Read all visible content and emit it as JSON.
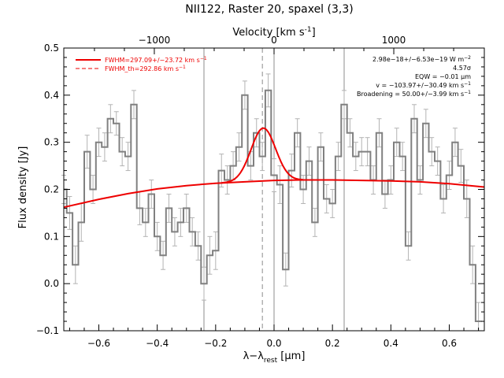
{
  "chart_data": {
    "type": "line",
    "title": "NII122, Raster 20, spaxel (3,3)",
    "xlabel_main": "λ",
    "xlabel_mid": "−λ",
    "xlabel_sub": "rest",
    "xlabel_unit_open": " [",
    "xlabel_unit_mu": "μ",
    "xlabel_unit_close": "m]",
    "ylabel": "Flux density [Jy]",
    "top_xlabel_main": "Velocity [km s",
    "top_xlabel_exp": "-1",
    "top_xlabel_close": "]",
    "xlim": [
      -0.72,
      0.72
    ],
    "ylim": [
      -0.1,
      0.5
    ],
    "x_ticks": [
      -0.6,
      -0.4,
      -0.2,
      0.0,
      0.2,
      0.4,
      0.6
    ],
    "x_tick_labels": [
      "−0.6",
      "−0.4",
      "−0.2",
      "0.0",
      "0.2",
      "0.4",
      "0.6"
    ],
    "y_ticks": [
      -0.1,
      0.0,
      0.1,
      0.2,
      0.3,
      0.4,
      0.5
    ],
    "y_tick_labels": [
      "−0.1",
      "0.0",
      "0.1",
      "0.2",
      "0.3",
      "0.4",
      "0.5"
    ],
    "top_ticks_velocity": [
      -1000,
      0,
      1000
    ],
    "top_tick_labels": [
      "−1000",
      "0",
      "1000"
    ],
    "vertical_lines_x": [
      -0.24,
      0.0,
      0.24
    ],
    "dashed_line_x": -0.04,
    "spectrum": {
      "name": "data",
      "color": "#808080",
      "x": [
        -0.72,
        -0.7,
        -0.68,
        -0.66,
        -0.64,
        -0.62,
        -0.6,
        -0.58,
        -0.56,
        -0.54,
        -0.52,
        -0.5,
        -0.48,
        -0.46,
        -0.44,
        -0.42,
        -0.4,
        -0.38,
        -0.36,
        -0.34,
        -0.32,
        -0.3,
        -0.28,
        -0.26,
        -0.24,
        -0.22,
        -0.2,
        -0.18,
        -0.16,
        -0.14,
        -0.12,
        -0.1,
        -0.08,
        -0.06,
        -0.04,
        -0.02,
        0.0,
        0.02,
        0.04,
        0.06,
        0.08,
        0.1,
        0.12,
        0.14,
        0.16,
        0.18,
        0.2,
        0.22,
        0.24,
        0.26,
        0.28,
        0.3,
        0.32,
        0.34,
        0.36,
        0.38,
        0.4,
        0.42,
        0.44,
        0.46,
        0.48,
        0.5,
        0.52,
        0.54,
        0.56,
        0.58,
        0.6,
        0.62,
        0.64,
        0.66,
        0.68,
        0.7
      ],
      "y": [
        0.2,
        0.15,
        0.04,
        0.13,
        0.28,
        0.2,
        0.3,
        0.29,
        0.35,
        0.34,
        0.28,
        0.27,
        0.38,
        0.16,
        0.13,
        0.19,
        0.1,
        0.06,
        0.16,
        0.11,
        0.13,
        0.16,
        0.11,
        0.08,
        0.0,
        0.06,
        0.07,
        0.24,
        0.22,
        0.25,
        0.29,
        0.4,
        0.25,
        0.32,
        0.27,
        0.41,
        0.23,
        0.21,
        0.03,
        0.24,
        0.32,
        0.2,
        0.26,
        0.13,
        0.29,
        0.18,
        0.17,
        0.27,
        0.38,
        0.32,
        0.27,
        0.28,
        0.28,
        0.22,
        0.32,
        0.19,
        0.22,
        0.3,
        0.27,
        0.08,
        0.35,
        0.22,
        0.34,
        0.28,
        0.26,
        0.18,
        0.23,
        0.3,
        0.25,
        0.18,
        0.04,
        -0.08
      ],
      "err": [
        0.03,
        0.035,
        0.04,
        0.04,
        0.035,
        0.03,
        0.03,
        0.03,
        0.03,
        0.025,
        0.03,
        0.03,
        0.03,
        0.035,
        0.03,
        0.03,
        0.03,
        0.03,
        0.03,
        0.03,
        0.03,
        0.03,
        0.03,
        0.03,
        0.035,
        0.04,
        0.04,
        0.035,
        0.03,
        0.03,
        0.03,
        0.03,
        0.03,
        0.03,
        0.03,
        0.035,
        0.035,
        0.04,
        0.035,
        0.035,
        0.03,
        0.03,
        0.03,
        0.03,
        0.03,
        0.03,
        0.03,
        0.03,
        0.03,
        0.03,
        0.03,
        0.03,
        0.03,
        0.03,
        0.03,
        0.03,
        0.03,
        0.03,
        0.03,
        0.03,
        0.03,
        0.03,
        0.03,
        0.03,
        0.03,
        0.03,
        0.03,
        0.03,
        0.035,
        0.04,
        0.04,
        0.04
      ]
    },
    "continuum": {
      "color": "#ee0000",
      "points": [
        [
          -0.72,
          0.162
        ],
        [
          -0.6,
          0.179
        ],
        [
          -0.5,
          0.191
        ],
        [
          -0.4,
          0.201
        ],
        [
          -0.3,
          0.208
        ],
        [
          -0.2,
          0.213
        ],
        [
          -0.1,
          0.216
        ],
        [
          0.0,
          0.219
        ],
        [
          0.1,
          0.22
        ],
        [
          0.2,
          0.22
        ],
        [
          0.3,
          0.219
        ],
        [
          0.4,
          0.218
        ],
        [
          0.5,
          0.216
        ],
        [
          0.6,
          0.212
        ],
        [
          0.72,
          0.205
        ]
      ]
    },
    "gaussian_fit": {
      "color": "#ee0000",
      "center": -0.037,
      "amplitude": 0.112,
      "sigma": 0.042,
      "x_range": [
        -0.18,
        0.1
      ]
    },
    "legend": {
      "placement": "top-left",
      "entries": [
        {
          "label": "FWHM=297.09+/−23.72 km s",
          "exp": "−1",
          "style": "solid",
          "color": "#ee0000"
        },
        {
          "label": "FWHM_th=292.86 km s",
          "exp": "−1",
          "style": "dashed",
          "color": "#ee0000"
        }
      ]
    },
    "annotations": {
      "placement": "top-right",
      "line1_main": "2.98e−18+/−6.53e−19 W m",
      "line1_exp": "−2",
      "line2_main": "4.57",
      "line2_sym": "σ",
      "line3_main": "EQW = −0.01 ",
      "line3_unit_mu": "μ",
      "line3_unit": "m",
      "line4_main": "v = −103.97+/−30.49 km s",
      "line4_exp": "−1",
      "line5_main": "Broadening = 50.00+/−3.99 km s",
      "line5_exp": "−1"
    },
    "grid": false
  }
}
